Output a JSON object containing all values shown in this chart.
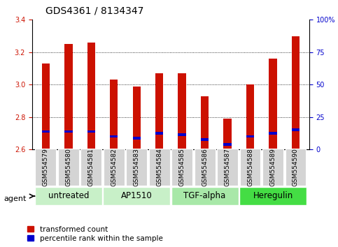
{
  "title": "GDS4361 / 8134347",
  "samples": [
    "GSM554579",
    "GSM554580",
    "GSM554581",
    "GSM554582",
    "GSM554583",
    "GSM554584",
    "GSM554585",
    "GSM554586",
    "GSM554587",
    "GSM554588",
    "GSM554589",
    "GSM554590"
  ],
  "red_values": [
    3.13,
    3.25,
    3.26,
    3.03,
    2.99,
    3.07,
    3.07,
    2.93,
    2.79,
    3.0,
    3.16,
    3.3
  ],
  "blue_values": [
    2.71,
    2.71,
    2.71,
    2.68,
    2.67,
    2.7,
    2.69,
    2.66,
    2.63,
    2.68,
    2.7,
    2.72
  ],
  "bar_bottom": 2.6,
  "ylim_left": [
    2.6,
    3.4
  ],
  "ylim_right": [
    0,
    100
  ],
  "yticks_left": [
    2.6,
    2.8,
    3.0,
    3.2,
    3.4
  ],
  "yticks_right": [
    0,
    25,
    50,
    75,
    100
  ],
  "yticklabels_right": [
    "0",
    "25",
    "50",
    "75",
    "100%"
  ],
  "groups": [
    {
      "label": "untreated",
      "start": 0,
      "end": 3,
      "color": "#c8f0c8"
    },
    {
      "label": "AP1510",
      "start": 3,
      "end": 6,
      "color": "#c8f0c8"
    },
    {
      "label": "TGF-alpha",
      "start": 6,
      "end": 9,
      "color": "#a8e8a8"
    },
    {
      "label": "Heregulin",
      "start": 9,
      "end": 12,
      "color": "#44dd44"
    }
  ],
  "red_color": "#cc1100",
  "blue_color": "#0000cc",
  "bar_width": 0.35,
  "grid_color": "black",
  "ylabel_left_color": "#cc1100",
  "ylabel_right_color": "#0000cc",
  "legend_red": "transformed count",
  "legend_blue": "percentile rank within the sample",
  "agent_label": "agent",
  "title_fontsize": 10,
  "tick_fontsize": 7,
  "sample_fontsize": 6.5,
  "group_fontsize": 8.5,
  "legend_fontsize": 7.5
}
